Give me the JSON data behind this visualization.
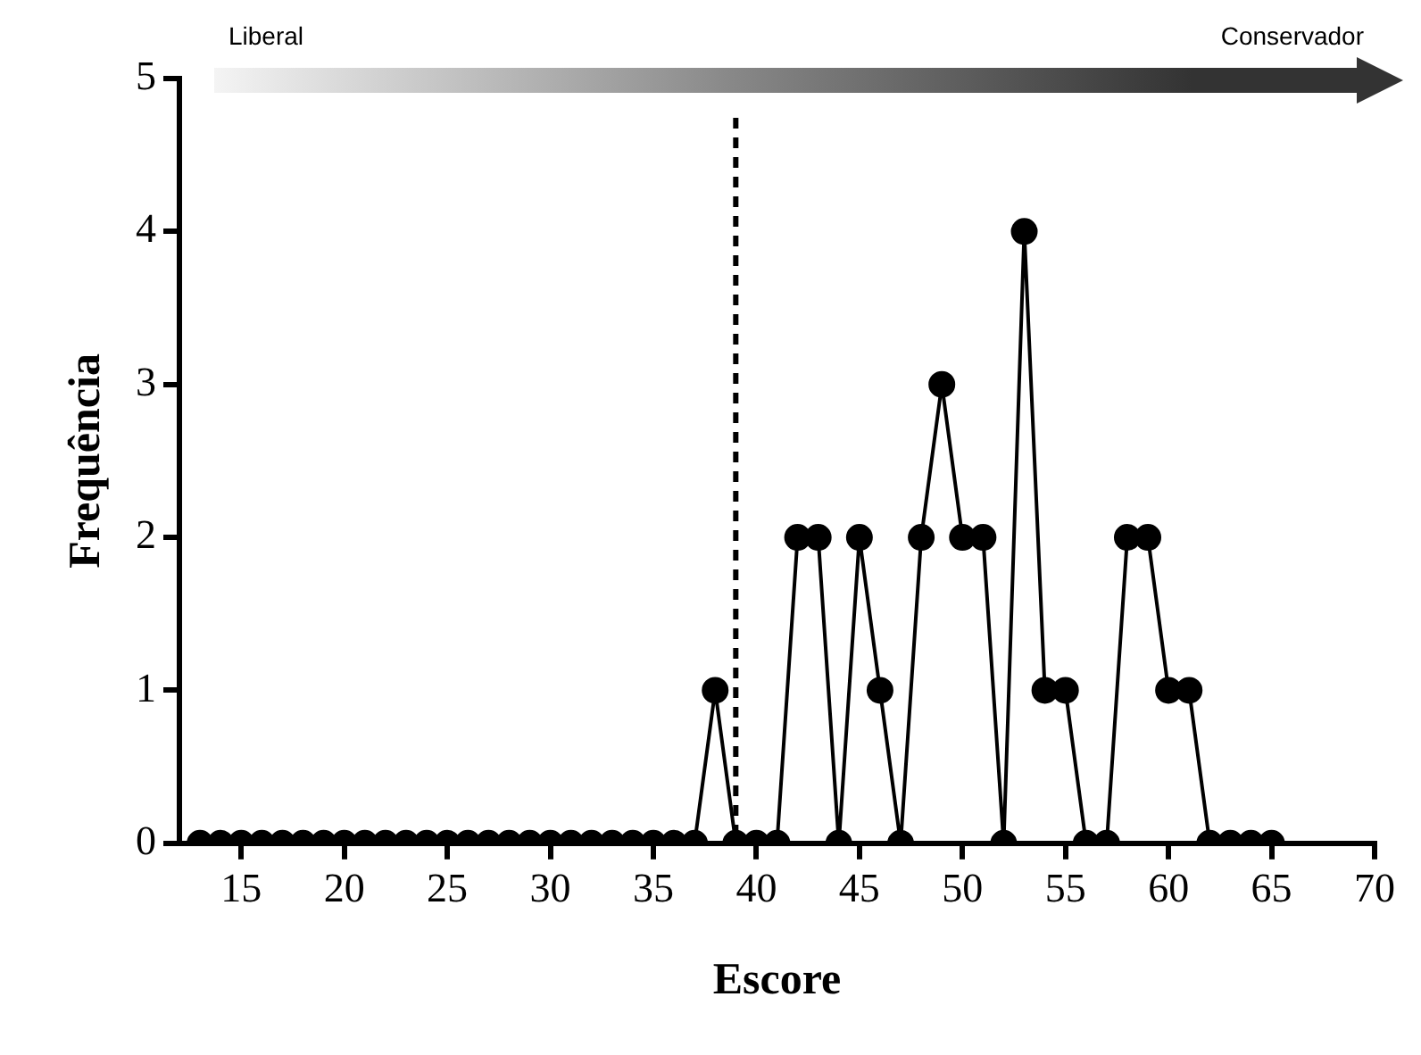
{
  "chart_data": {
    "type": "line",
    "xlabel": "Escore",
    "ylabel": "Frequência",
    "x": [
      13,
      14,
      15,
      16,
      17,
      18,
      19,
      20,
      21,
      22,
      23,
      24,
      25,
      26,
      27,
      28,
      29,
      30,
      31,
      32,
      33,
      34,
      35,
      36,
      37,
      38,
      39,
      40,
      41,
      42,
      43,
      44,
      45,
      46,
      47,
      48,
      49,
      50,
      51,
      52,
      53,
      54,
      55,
      56,
      57,
      58,
      59,
      60,
      61,
      62,
      63,
      64,
      65
    ],
    "series": [
      {
        "color": "#000000",
        "values": [
          0,
          0,
          0,
          0,
          0,
          0,
          0,
          0,
          0,
          0,
          0,
          0,
          0,
          0,
          0,
          0,
          0,
          0,
          0,
          0,
          0,
          0,
          0,
          0,
          0,
          1,
          0,
          0,
          0,
          2,
          2,
          0,
          2,
          1,
          0,
          2,
          3,
          2,
          2,
          0,
          4,
          1,
          1,
          0,
          0,
          2,
          2,
          1,
          1,
          0,
          0,
          0,
          0
        ]
      }
    ],
    "xlim": [
      12,
      70
    ],
    "xticks": [
      15,
      20,
      25,
      30,
      35,
      40,
      45,
      50,
      55,
      60,
      65,
      70
    ],
    "ylim": [
      0,
      5
    ],
    "yticks": [
      0,
      1,
      2,
      3,
      4,
      5
    ],
    "grid": false,
    "legend": false,
    "marker": "circle",
    "line_style": "solid",
    "ref_lines": [
      {
        "axis": "x",
        "value": 39,
        "color": "#000000",
        "line_style": "dashed"
      }
    ],
    "annotations": [
      "Liberal",
      "Conservador"
    ]
  }
}
